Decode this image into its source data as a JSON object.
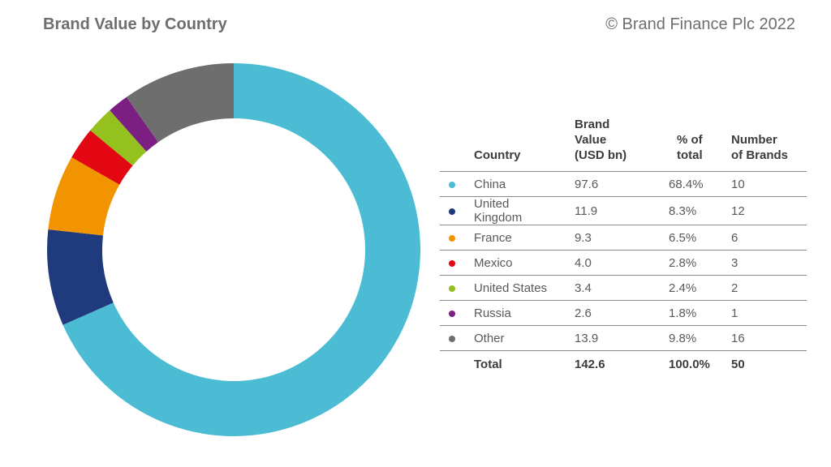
{
  "header": {
    "title": "Brand Value by Country",
    "copyright": "© Brand Finance Plc 2022"
  },
  "table": {
    "headers": {
      "country": "Country",
      "brand_value_1": "Brand",
      "brand_value_2": "Value",
      "brand_value_3": "(USD bn)",
      "pct_1": "% of",
      "pct_2": "total",
      "brands_1": "Number",
      "brands_2": "of Brands"
    },
    "rows": [
      {
        "country": "China",
        "value": "97.6",
        "pct": "68.4%",
        "brands": "10"
      },
      {
        "country": "United Kingdom",
        "value": "11.9",
        "pct": "8.3%",
        "brands": "12"
      },
      {
        "country": "France",
        "value": "9.3",
        "pct": "6.5%",
        "brands": "6"
      },
      {
        "country": "Mexico",
        "value": "4.0",
        "pct": "2.8%",
        "brands": "3"
      },
      {
        "country": "United States",
        "value": "3.4",
        "pct": "2.4%",
        "brands": "2"
      },
      {
        "country": "Russia",
        "value": "2.6",
        "pct": "1.8%",
        "brands": "1"
      },
      {
        "country": "Other",
        "value": "13.9",
        "pct": "9.8%",
        "brands": "16"
      }
    ],
    "total": {
      "label": "Total",
      "value": "142.6",
      "pct": "100.0%",
      "brands": "50"
    }
  },
  "chart_data": {
    "type": "pie",
    "style": "donut",
    "title": "Brand Value by Country",
    "categories": [
      "China",
      "United Kingdom",
      "France",
      "Mexico",
      "United States",
      "Russia",
      "Other"
    ],
    "values": [
      97.6,
      11.9,
      9.3,
      4.0,
      3.4,
      2.6,
      13.9
    ],
    "colors": [
      "#4bbcd4",
      "#1f3a7d",
      "#f29400",
      "#e30613",
      "#95c11f",
      "#7b1f82",
      "#6f6e6e"
    ],
    "start_angle_deg": 0,
    "direction": "clockwise",
    "legend": "right"
  }
}
